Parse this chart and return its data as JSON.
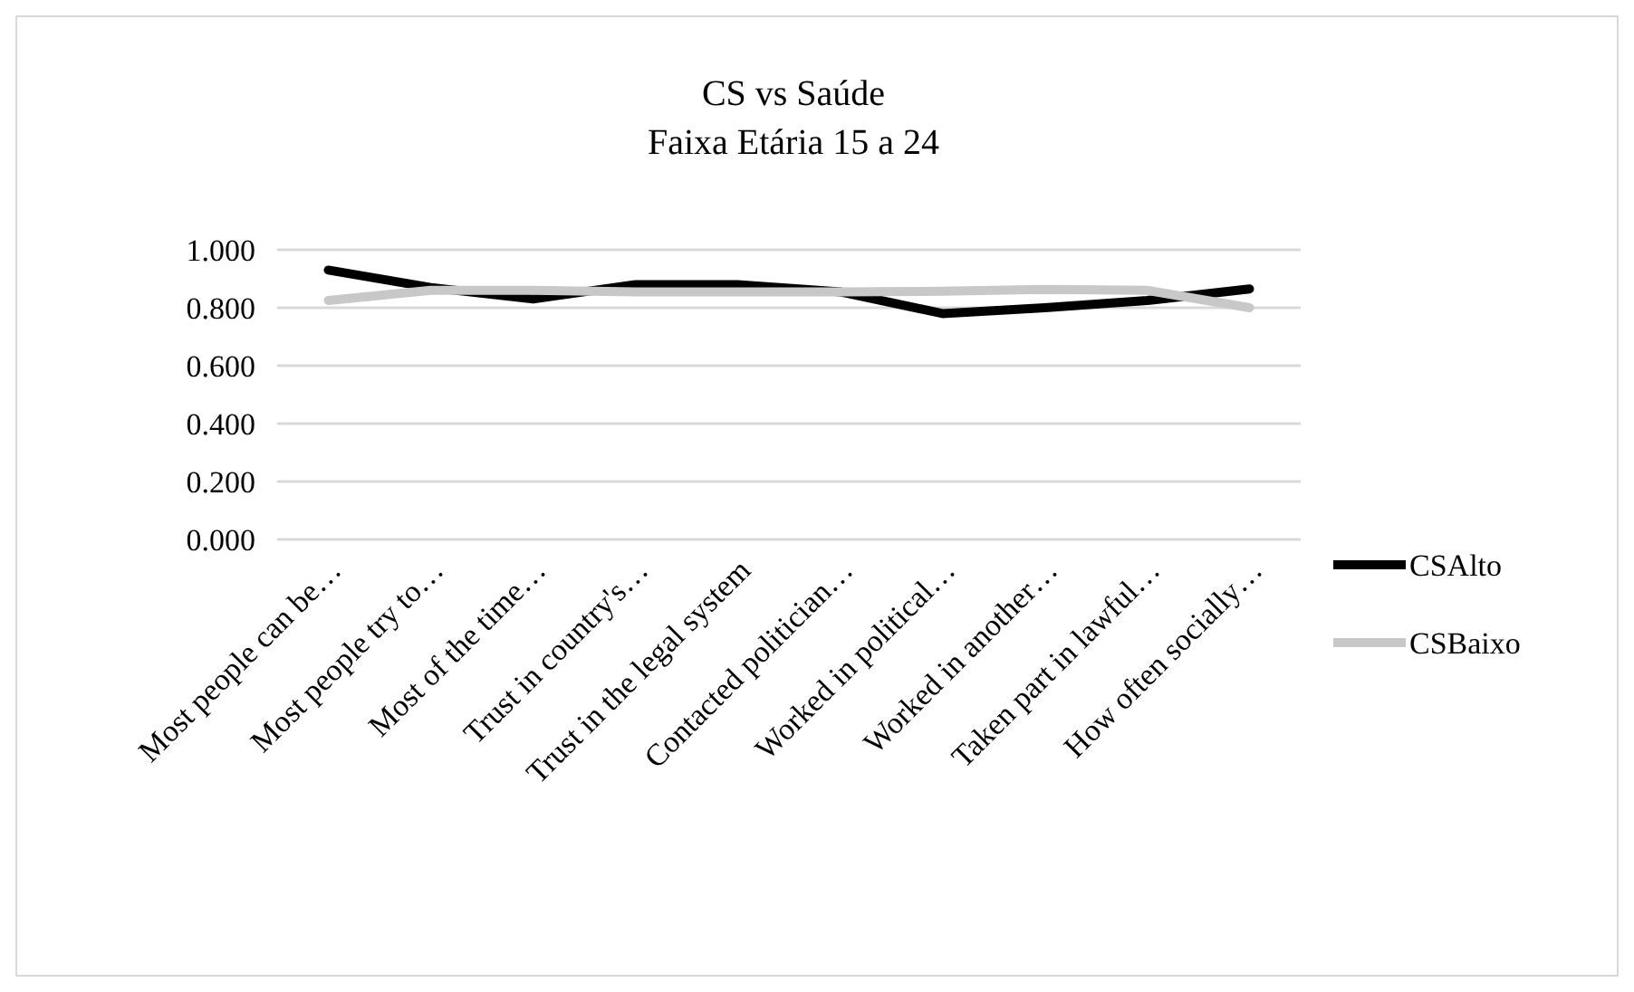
{
  "chart_data": {
    "type": "line",
    "title": "CS vs Saúde",
    "subtitle": "Faixa Etária 15 a 24",
    "categories": [
      "Most people can be…",
      "Most people try to…",
      "Most of the time…",
      "Trust in country's…",
      "Trust in the legal system",
      "Contacted politician…",
      "Worked in political…",
      "Worked in another…",
      "Taken part in lawful…",
      "How often socially…"
    ],
    "series": [
      {
        "name": "CSAlto",
        "color": "#000000",
        "values": [
          0.93,
          0.87,
          0.83,
          0.88,
          0.88,
          0.855,
          0.78,
          0.8,
          0.825,
          0.865
        ]
      },
      {
        "name": "CSBaixo",
        "color": "#c8c8c8",
        "values": [
          0.825,
          0.86,
          0.86,
          0.855,
          0.855,
          0.855,
          0.857,
          0.863,
          0.86,
          0.8
        ]
      }
    ],
    "ylim": [
      0,
      1
    ],
    "yticks": [
      {
        "value": 0,
        "label": "0.000"
      },
      {
        "value": 0.2,
        "label": "0.200"
      },
      {
        "value": 0.4,
        "label": "0.400"
      },
      {
        "value": 0.6,
        "label": "0.600"
      },
      {
        "value": 0.8,
        "label": "0.800"
      },
      {
        "value": 1,
        "label": "1.000"
      }
    ],
    "grid": "y",
    "legend": "right",
    "marker": "none",
    "line_style": "solid"
  }
}
